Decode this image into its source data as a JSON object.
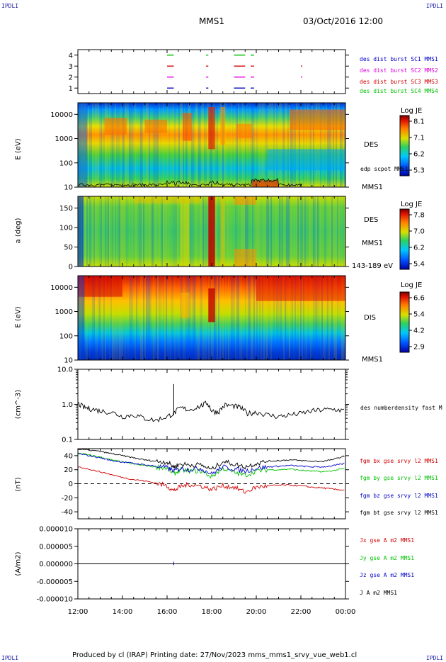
{
  "corners": {
    "tl": "IPDLI",
    "tr": "IPDLI",
    "bl": "IPDLI",
    "br": "IPDLI"
  },
  "header": {
    "spacecraft": "MMS1",
    "datetime": "03/Oct/2016 12:00"
  },
  "footer": {
    "text": "Produced by cl (IRAP)   Printing date: 27/Nov/2023   mms_mms1_srvy_vue_web1.cl"
  },
  "colors": {
    "blue": "#0000c8",
    "magenta": "#e000e0",
    "red": "#d00000",
    "green": "#00c000",
    "black": "#000000"
  },
  "panels": {
    "burst": {
      "ytick_labels": [
        "4",
        "3",
        "2",
        "1"
      ],
      "legend": [
        {
          "text": "des dist burst SC1 MMS1",
          "color": "#0000c8"
        },
        {
          "text": "des dist burst SC2 MMS2",
          "color": "#e000e0"
        },
        {
          "text": "des dist burst SC3 MMS3",
          "color": "#d00000"
        },
        {
          "text": "des dist burst SC4 MMS4",
          "color": "#00c000"
        }
      ]
    },
    "des_energy": {
      "ylabel": "E (eV)",
      "ytick_labels": [
        "10000",
        "1000",
        "100",
        "10"
      ],
      "species": "DES",
      "spacecraft": "MMS1",
      "line_label": "edp scpot MMS1",
      "colorbar": {
        "title": "Log JE",
        "ticks": [
          "8.1",
          "7.1",
          "6.2",
          "5.3"
        ]
      }
    },
    "des_pitch": {
      "ylabel": "a (deg)",
      "ytick_labels": [
        "150",
        "100",
        "50",
        "0"
      ],
      "species": "DES",
      "spacecraft": "MMS1",
      "energy_band": "143-189 eV",
      "colorbar": {
        "title": "Log JE",
        "ticks": [
          "7.8",
          "7.0",
          "6.2",
          "5.4"
        ]
      }
    },
    "dis_energy": {
      "ylabel": "E (eV)",
      "ytick_labels": [
        "10000",
        "1000",
        "100",
        "10"
      ],
      "species": "DIS",
      "spacecraft": "MMS1",
      "colorbar": {
        "title": "Log JE",
        "ticks": [
          "6.6",
          "5.4",
          "4.2",
          "2.9"
        ]
      }
    },
    "density": {
      "ylabel": "(cm^-3)",
      "ytick_labels": [
        "10.0",
        "1.0",
        "0.1"
      ],
      "legend": "des numberdensity fast M"
    },
    "bfield": {
      "ylabel": "(nT)",
      "ytick_labels": [
        "40",
        "20",
        "0",
        "-20",
        "-40"
      ],
      "legend": [
        {
          "text": "fgm bx gse srvy l2 MMS1",
          "color": "#d00000"
        },
        {
          "text": "fgm by gse srvy l2 MMS1",
          "color": "#00c000"
        },
        {
          "text": "fgm bz gse srvy l2 MMS1",
          "color": "#0000c8"
        },
        {
          "text": "fgm bt gse srvy l2 MMS1",
          "color": "#000000"
        }
      ]
    },
    "current": {
      "ylabel": "(A/m2)",
      "ytick_labels": [
        "0.000010",
        "0.000005",
        "0.000000",
        "-0.000005",
        "-0.000010"
      ],
      "legend": [
        {
          "text": "Jx gse A m2 MMS1",
          "color": "#d00000"
        },
        {
          "text": "Jy gse A m2 MMS1",
          "color": "#00c000"
        },
        {
          "text": "Jz gse A m2 MMS1",
          "color": "#0000c8"
        },
        {
          "text": "J A m2 MMS1",
          "color": "#000000"
        }
      ]
    }
  },
  "xaxis": {
    "tick_labels": [
      "12:00",
      "14:00",
      "16:00",
      "18:00",
      "20:00",
      "22:00",
      "00:00"
    ]
  },
  "chart_data": [
    {
      "type": "heatmap",
      "panel": "burst",
      "title": "",
      "ylabel": "",
      "y_values": [
        1,
        2,
        3,
        4
      ],
      "x_range_hours": [
        12,
        24
      ],
      "series": [
        {
          "name": "des dist burst SC1 MMS1",
          "y": 1,
          "intervals_hours": [
            [
              16.0,
              16.3
            ],
            [
              17.75,
              17.85
            ],
            [
              19.0,
              19.5
            ],
            [
              19.75,
              19.9
            ]
          ]
        },
        {
          "name": "des dist burst SC2 MMS2",
          "y": 2,
          "intervals_hours": [
            [
              16.0,
              16.3
            ],
            [
              17.75,
              17.85
            ],
            [
              19.0,
              19.5
            ],
            [
              19.75,
              19.9
            ],
            [
              22.0,
              22.05
            ]
          ]
        },
        {
          "name": "des dist burst SC3 MMS3",
          "y": 3,
          "intervals_hours": [
            [
              16.0,
              16.3
            ],
            [
              17.75,
              17.85
            ],
            [
              19.0,
              19.5
            ],
            [
              19.75,
              19.9
            ],
            [
              22.0,
              22.05
            ]
          ]
        },
        {
          "name": "des dist burst SC4 MMS4",
          "y": 4,
          "intervals_hours": [
            [
              16.0,
              16.3
            ],
            [
              17.75,
              17.85
            ],
            [
              19.0,
              19.5
            ],
            [
              19.75,
              19.9
            ]
          ]
        }
      ]
    },
    {
      "type": "heatmap",
      "panel": "des_energy",
      "title": "",
      "ylabel": "E (eV)",
      "yscale": "log",
      "ylim": [
        10,
        30000
      ],
      "clim": [
        5.3,
        8.1
      ],
      "colorbar_label": "Log JE",
      "x_range_hours": [
        12,
        24
      ]
    },
    {
      "type": "heatmap",
      "panel": "des_pitch",
      "title": "",
      "ylabel": "a (deg)",
      "ylim": [
        0,
        180
      ],
      "clim": [
        5.4,
        7.8
      ],
      "colorbar_label": "Log JE",
      "x_range_hours": [
        12,
        24
      ]
    },
    {
      "type": "heatmap",
      "panel": "dis_energy",
      "title": "",
      "ylabel": "E (eV)",
      "yscale": "log",
      "ylim": [
        10,
        30000
      ],
      "clim": [
        2.9,
        6.6
      ],
      "colorbar_label": "Log JE",
      "x_range_hours": [
        12,
        24
      ]
    },
    {
      "type": "line",
      "panel": "density",
      "ylabel": "(cm^-3)",
      "yscale": "log",
      "ylim": [
        0.1,
        10
      ],
      "series": [
        {
          "name": "des numberdensity fast M",
          "x": [
            12.0,
            12.3,
            12.6,
            13.0,
            13.5,
            14.0,
            14.5,
            15.0,
            15.5,
            16.0,
            16.3,
            16.6,
            17.0,
            17.5,
            17.8,
            18.0,
            18.3,
            18.6,
            19.0,
            19.3,
            19.6,
            20.0,
            20.5,
            21.0,
            21.5,
            22.0,
            22.5,
            23.0,
            23.5,
            24.0
          ],
          "y": [
            1.05,
            0.8,
            0.75,
            0.65,
            0.6,
            0.45,
            0.5,
            0.4,
            0.35,
            0.45,
            0.55,
            0.8,
            0.7,
            0.9,
            1.1,
            0.65,
            0.6,
            0.95,
            0.9,
            0.8,
            0.55,
            0.6,
            0.5,
            0.45,
            0.5,
            0.55,
            0.65,
            0.7,
            0.72,
            0.66
          ]
        }
      ]
    },
    {
      "type": "line",
      "panel": "bfield",
      "ylabel": "(nT)",
      "ylim": [
        -50,
        50
      ],
      "x": [
        12.0,
        12.5,
        13.0,
        13.5,
        14.0,
        14.5,
        15.0,
        15.5,
        16.0,
        16.3,
        16.6,
        17.0,
        17.5,
        18.0,
        18.5,
        19.0,
        19.5,
        20.0,
        20.5,
        21.0,
        21.5,
        22.0,
        22.5,
        23.0,
        23.5,
        24.0
      ],
      "series": [
        {
          "name": "fgm bx gse srvy l2 MMS1",
          "values": [
            24,
            21,
            17,
            13,
            9,
            6,
            4,
            1,
            -3,
            -10,
            -4,
            -1,
            -3,
            -8,
            -3,
            -5,
            -12,
            -5,
            -3,
            -2,
            -2,
            -3,
            -5,
            -6,
            -8,
            -9
          ]
        },
        {
          "name": "fgm by gse srvy l2 MMS1",
          "values": [
            44,
            41,
            38,
            34,
            31,
            28,
            26,
            24,
            22,
            14,
            20,
            18,
            18,
            10,
            22,
            16,
            12,
            18,
            20,
            20,
            21,
            19,
            18,
            17,
            19,
            22
          ]
        },
        {
          "name": "fgm bz gse srvy l2 MMS1",
          "values": [
            43,
            40,
            37,
            33,
            31,
            29,
            27,
            25,
            23,
            18,
            22,
            20,
            22,
            14,
            24,
            21,
            18,
            22,
            24,
            25,
            26,
            25,
            24,
            24,
            26,
            29
          ]
        },
        {
          "name": "fgm bt gse srvy l2 MMS1",
          "values": [
            49,
            48,
            46,
            43,
            40,
            37,
            34,
            32,
            31,
            24,
            28,
            27,
            27,
            20,
            32,
            28,
            24,
            29,
            32,
            33,
            34,
            33,
            32,
            32,
            35,
            40
          ]
        }
      ]
    },
    {
      "type": "line",
      "panel": "current",
      "ylabel": "(A/m2)",
      "ylim": [
        -1e-05,
        1e-05
      ],
      "x": [
        12,
        24
      ],
      "series": [
        {
          "name": "Jx gse A m2 MMS1",
          "values": [
            0,
            0
          ]
        },
        {
          "name": "Jy gse A m2 MMS1",
          "values": [
            0,
            0
          ]
        },
        {
          "name": "Jz gse A m2 MMS1",
          "values": [
            0,
            0
          ]
        },
        {
          "name": "J A m2 MMS1",
          "values": [
            0,
            0
          ]
        }
      ]
    }
  ]
}
